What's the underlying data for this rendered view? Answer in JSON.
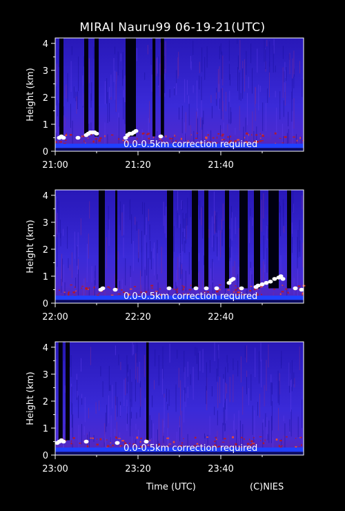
{
  "title": "MIRAI Nauru99 06-19-21(UTC)",
  "footer": {
    "xlabel": "Time (UTC)",
    "credit": "(C)NIES"
  },
  "colors": {
    "background": "#000000",
    "signal": "#3a2ad8",
    "signal_dark": "#1a10a0",
    "boundary_layer": "#c01818",
    "cloud": "#ffffff",
    "surface": "#2040ff"
  },
  "chart_data": [
    {
      "type": "heatmap",
      "ylabel": "Height (km)",
      "ylim": [
        0,
        4.2
      ],
      "yticks": [
        0,
        1,
        2,
        3,
        4
      ],
      "x_range_minutes": [
        0,
        60
      ],
      "xticks": [
        {
          "minute": 0,
          "label": "21:00"
        },
        {
          "minute": 20,
          "label": "21:20"
        },
        {
          "minute": 40,
          "label": "21:40"
        }
      ],
      "note": "0.0-0.5km correction required",
      "dark_columns": [
        {
          "start": 1.0,
          "end": 2.0
        },
        {
          "start": 7.0,
          "end": 8.0
        },
        {
          "start": 9.5,
          "end": 10.5
        },
        {
          "start": 17.0,
          "end": 19.5
        },
        {
          "start": 23.5,
          "end": 24.2
        },
        {
          "start": 25.5,
          "end": 26.3
        }
      ],
      "cloud_points": [
        {
          "minute": 1.0,
          "height": 0.5
        },
        {
          "minute": 1.5,
          "height": 0.55
        },
        {
          "minute": 2.0,
          "height": 0.5
        },
        {
          "minute": 5.5,
          "height": 0.5
        },
        {
          "minute": 7.5,
          "height": 0.6
        },
        {
          "minute": 8.0,
          "height": 0.65
        },
        {
          "minute": 8.5,
          "height": 0.7
        },
        {
          "minute": 9.0,
          "height": 0.7
        },
        {
          "minute": 9.5,
          "height": 0.7
        },
        {
          "minute": 10.0,
          "height": 0.65
        },
        {
          "minute": 17.0,
          "height": 0.5
        },
        {
          "minute": 17.5,
          "height": 0.6
        },
        {
          "minute": 18.0,
          "height": 0.65
        },
        {
          "minute": 18.5,
          "height": 0.65
        },
        {
          "minute": 19.0,
          "height": 0.7
        },
        {
          "minute": 19.5,
          "height": 0.75
        },
        {
          "minute": 25.5,
          "height": 0.55
        }
      ]
    },
    {
      "type": "heatmap",
      "ylabel": "Height (km)",
      "ylim": [
        0,
        4.2
      ],
      "yticks": [
        0,
        1,
        2,
        3,
        4
      ],
      "x_range_minutes": [
        0,
        60
      ],
      "xticks": [
        {
          "minute": 0,
          "label": "22:00"
        },
        {
          "minute": 20,
          "label": "22:20"
        },
        {
          "minute": 40,
          "label": "22:40"
        }
      ],
      "note": "0.0-0.5km correction required",
      "dark_columns": [
        {
          "start": 10.5,
          "end": 12.0
        },
        {
          "start": 14.5,
          "end": 15.0
        },
        {
          "start": 27.0,
          "end": 28.5
        },
        {
          "start": 33.0,
          "end": 34.5
        },
        {
          "start": 36.0,
          "end": 37.0
        },
        {
          "start": 41.0,
          "end": 42.0
        },
        {
          "start": 44.5,
          "end": 46.5
        },
        {
          "start": 48.0,
          "end": 49.5
        },
        {
          "start": 51.5,
          "end": 54.0
        },
        {
          "start": 56.0,
          "end": 57.0
        }
      ],
      "cloud_points": [
        {
          "minute": 11.0,
          "height": 0.5
        },
        {
          "minute": 11.5,
          "height": 0.55
        },
        {
          "minute": 14.5,
          "height": 0.5
        },
        {
          "minute": 27.5,
          "height": 0.55
        },
        {
          "minute": 34.0,
          "height": 0.55
        },
        {
          "minute": 36.5,
          "height": 0.55
        },
        {
          "minute": 39.0,
          "height": 0.55
        },
        {
          "minute": 42.0,
          "height": 0.75
        },
        {
          "minute": 42.5,
          "height": 0.85
        },
        {
          "minute": 43.0,
          "height": 0.9
        },
        {
          "minute": 45.0,
          "height": 0.55
        },
        {
          "minute": 48.5,
          "height": 0.6
        },
        {
          "minute": 49.0,
          "height": 0.65
        },
        {
          "minute": 50.0,
          "height": 0.7
        },
        {
          "minute": 51.0,
          "height": 0.75
        },
        {
          "minute": 52.0,
          "height": 0.8
        },
        {
          "minute": 53.0,
          "height": 0.9
        },
        {
          "minute": 54.0,
          "height": 0.95
        },
        {
          "minute": 54.5,
          "height": 1.0
        },
        {
          "minute": 55.0,
          "height": 0.9
        },
        {
          "minute": 58.0,
          "height": 0.55
        },
        {
          "minute": 59.5,
          "height": 0.5
        }
      ]
    },
    {
      "type": "heatmap",
      "ylabel": "Height (km)",
      "ylim": [
        0,
        4.2
      ],
      "yticks": [
        0,
        1,
        2,
        3,
        4
      ],
      "x_range_minutes": [
        0,
        60
      ],
      "xticks": [
        {
          "minute": 0,
          "label": "23:00"
        },
        {
          "minute": 20,
          "label": "23:20"
        },
        {
          "minute": 40,
          "label": "23:40"
        }
      ],
      "note": "0.0-0.5km correction required",
      "dark_columns": [
        {
          "start": 0.8,
          "end": 1.8
        },
        {
          "start": 2.5,
          "end": 3.5
        },
        {
          "start": 22.0,
          "end": 22.6
        }
      ],
      "cloud_points": [
        {
          "minute": 0.5,
          "height": 0.45
        },
        {
          "minute": 1.0,
          "height": 0.5
        },
        {
          "minute": 1.5,
          "height": 0.55
        },
        {
          "minute": 2.0,
          "height": 0.5
        },
        {
          "minute": 7.5,
          "height": 0.5
        },
        {
          "minute": 15.0,
          "height": 0.45
        },
        {
          "minute": 22.0,
          "height": 0.5
        }
      ]
    }
  ]
}
